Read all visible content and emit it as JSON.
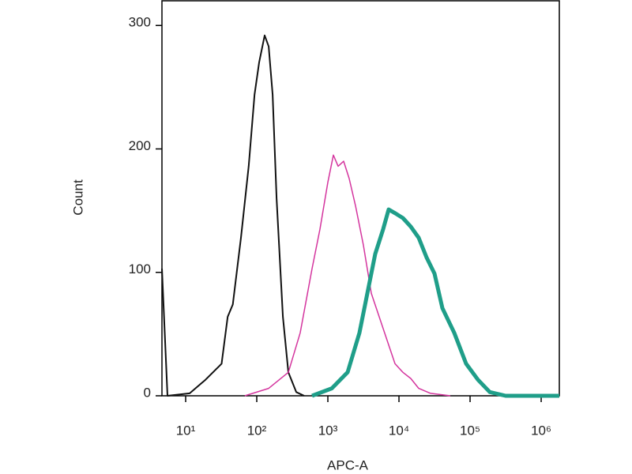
{
  "chart_data": {
    "type": "line",
    "xlabel": "APC-A",
    "ylabel": "Count",
    "xscale": "log",
    "xlim": [
      4.64,
      1800000
    ],
    "xticks": [
      {
        "value": 10,
        "label": "10¹"
      },
      {
        "value": 100,
        "label": "10²"
      },
      {
        "value": 1000,
        "label": "10³"
      },
      {
        "value": 10000,
        "label": "10⁴"
      },
      {
        "value": 100000,
        "label": "10⁵"
      },
      {
        "value": 1000000,
        "label": "10⁶"
      }
    ],
    "ylim": [
      0,
      320
    ],
    "yticks": [
      0,
      100,
      200,
      300
    ],
    "series": [
      {
        "color": "#111111",
        "width": 2,
        "x": [
          4.64,
          5.55,
          11.4,
          19,
          32,
          39,
          46,
          60,
          77,
          93,
          108,
          129,
          147,
          167,
          190,
          233,
          278,
          359,
          464
        ],
        "values": [
          103,
          0,
          2,
          13,
          26,
          64,
          74,
          128,
          186,
          244,
          270,
          292,
          283,
          244,
          160,
          64,
          19,
          3,
          0
        ]
      },
      {
        "color": "#d4359e",
        "width": 1.5,
        "x": [
          68,
          147,
          278,
          408,
          599,
          774,
          1000,
          1197,
          1395,
          1668,
          1995,
          2448,
          3162,
          4084,
          5275,
          6813,
          8799,
          11365,
          14678,
          18957,
          27826,
          52749
        ],
        "values": [
          0,
          6,
          19,
          51,
          103,
          135,
          173,
          195,
          186,
          190,
          176,
          154,
          122,
          83,
          64,
          45,
          26,
          19,
          14,
          6,
          2,
          0
        ]
      },
      {
        "color": "#1f9e89",
        "width": 5,
        "x": [
          599,
          1136,
          1896,
          2783,
          3593,
          4642,
          5995,
          7171,
          8799,
          11365,
          14678,
          18957,
          24484,
          31623,
          40842,
          59948,
          87992,
          129155,
          189574,
          316228,
          1800000
        ],
        "values": [
          0,
          6,
          19,
          51,
          83,
          115,
          135,
          151,
          148,
          144,
          137,
          128,
          112,
          99,
          71,
          51,
          26,
          13,
          3,
          0,
          0
        ]
      }
    ]
  }
}
